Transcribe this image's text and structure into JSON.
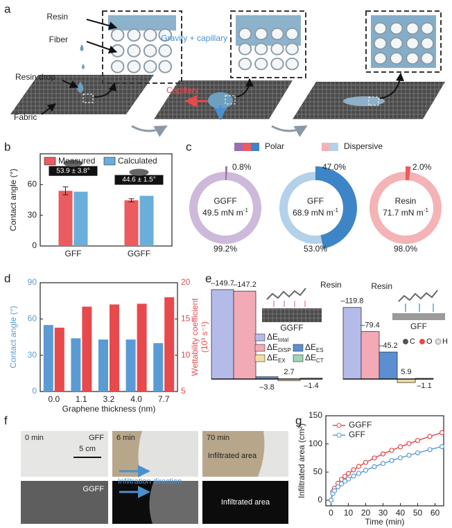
{
  "panel_labels": [
    "a",
    "b",
    "c",
    "d",
    "e",
    "f",
    "g"
  ],
  "schematic": {
    "labels": [
      "Resin",
      "Fiber",
      "Resin drop",
      "Fabric",
      "Capillary",
      "Gravity + capillary"
    ]
  },
  "photos": {
    "labels": [
      "0 min",
      "GFF",
      "5 cm",
      "6 min",
      "Infiltration direction",
      "70 min",
      "Infiltrated area",
      "GGFF",
      "Infiltrated area"
    ]
  },
  "chart_data": [
    {
      "type": "bar",
      "ylabel": "Contact angle (°)",
      "categories": [
        "GFF",
        "GGFF"
      ],
      "series": [
        {
          "name": "Measured",
          "color": "#ec5b5e",
          "values": [
            53.9,
            44.6
          ],
          "errors": [
            3.8,
            1.5
          ]
        },
        {
          "name": "Calculated",
          "color": "#6aaedb",
          "values": [
            53,
            49
          ]
        }
      ],
      "annotations": [
        "53.9 ± 3.8°",
        "44.6 ± 1.5°"
      ],
      "ylim": [
        0,
        90
      ],
      "yticks": [
        0,
        30,
        60
      ]
    },
    {
      "type": "donut",
      "legend": [
        "Polar",
        "Dispersive"
      ],
      "legend_colors": [
        [
          "#9b6fb0",
          "#ec5b5e",
          "#3d85c6"
        ],
        [
          "#f4b3b5",
          "#b4d1ea"
        ]
      ],
      "pies": [
        {
          "label": "GGFF",
          "center_value": "49.5 mN m",
          "center_exponent": "-1",
          "values": [
            0.8,
            99.2
          ],
          "value_labels": [
            "0.8%",
            "99.2%"
          ],
          "colors": [
            "#9b6fb0",
            "#cdb9da"
          ]
        },
        {
          "label": "GFF",
          "center_value": "68.9 mN m",
          "center_exponent": "-1",
          "values": [
            47.0,
            53.0
          ],
          "value_labels": [
            "47.0%",
            "53.0%"
          ],
          "colors": [
            "#3d85c6",
            "#b4d1ea"
          ]
        },
        {
          "label": "Resin",
          "center_value": "71.7 mN m",
          "center_exponent": "-1",
          "values": [
            2.0,
            98.0
          ],
          "value_labels": [
            "2.0%",
            "98.0%"
          ],
          "colors": [
            "#ec5b5e",
            "#f4b3b5"
          ]
        }
      ]
    },
    {
      "type": "bar",
      "ylabel": "Contact angle (°)",
      "y2label": [
        "Wettability coefficient",
        "(10³ s⁻¹)"
      ],
      "xlabel": "Graphene thickness (nm)",
      "categories": [
        "0.0",
        "1.1",
        "3.2",
        "4.0",
        "7.7"
      ],
      "series": [
        {
          "color": "#5b9bd5",
          "values": [
            55,
            44,
            43,
            43,
            40
          ]
        },
        {
          "color": "#e8494c",
          "axis": "y2",
          "values": [
            13.8,
            16.7,
            17.0,
            17.1,
            18.0
          ]
        }
      ],
      "ylim": [
        0,
        90
      ],
      "yticks": [
        0,
        30,
        60,
        90
      ],
      "y2lim": [
        5,
        20
      ],
      "y2ticks": [
        5,
        10,
        15,
        20
      ]
    },
    {
      "type": "energy",
      "series": [
        {
          "name": "ΔE",
          "subscript": "total",
          "color": "#b5bbe9"
        },
        {
          "name": "ΔE",
          "subscript": "DISP",
          "color": "#f2aab6"
        },
        {
          "name": "ΔE",
          "subscript": "ES",
          "color": "#5a8fd2"
        },
        {
          "name": "ΔE",
          "subscript": "EX",
          "color": "#f3dda2"
        },
        {
          "name": "ΔE",
          "subscript": "CT",
          "color": "#9fd4b6"
        }
      ],
      "groups": [
        {
          "label": "GGFF",
          "resin_label": "Resin",
          "values": [
            -149.7,
            -147.2,
            -3.8,
            2.7,
            -1.4
          ],
          "value_labels": [
            "–149.7",
            "–147.2",
            "–3.8",
            "2.7",
            "–1.4"
          ]
        },
        {
          "label": "GFF",
          "resin_label": "Resin",
          "values": [
            -119.8,
            -79.4,
            -45.2,
            5.9,
            -1.1
          ],
          "value_labels": [
            "–119.8",
            "–79.4",
            "–45.2",
            "5.9",
            "–1.1"
          ]
        }
      ],
      "atom_legend": [
        "C",
        "O",
        "H"
      ]
    },
    {
      "type": "line",
      "xlabel": "Time (min)",
      "ylabel": "Infiltrated area (cm²)",
      "x": [
        0,
        1,
        2,
        4,
        6,
        8,
        10,
        13,
        16,
        20,
        25,
        30,
        35,
        40,
        45,
        50,
        57,
        64
      ],
      "series": [
        {
          "name": "GGFF",
          "color": "#e8494c",
          "values": [
            0,
            15,
            21.2,
            30,
            36.7,
            42.4,
            47.4,
            54.1,
            60,
            67.1,
            75,
            82.2,
            88.7,
            94.9,
            100.6,
            106.1,
            113.2,
            120
          ]
        },
        {
          "name": "GFF",
          "color": "#5b9bd5",
          "values": [
            0,
            11.9,
            16.8,
            23.8,
            29.1,
            33.7,
            37.6,
            42.9,
            47.6,
            53.2,
            59.5,
            65.2,
            70.4,
            75.3,
            79.8,
            84.1,
            89.8,
            95.2
          ]
        }
      ],
      "xlim": [
        -3,
        65
      ],
      "xticks": [
        0,
        10,
        20,
        30,
        40,
        50,
        60
      ],
      "ylim": [
        -10,
        150
      ],
      "yticks": [
        0,
        50,
        100,
        150
      ]
    }
  ]
}
